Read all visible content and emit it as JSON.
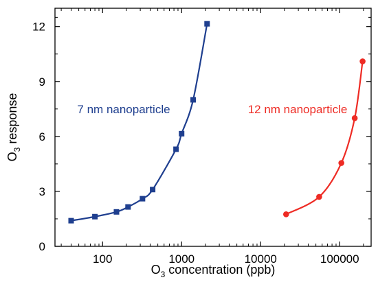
{
  "chart_data": {
    "type": "scatter",
    "title": "",
    "xlabel_parts": {
      "prefix": "O",
      "subscript": "3",
      "suffix": " concentration (ppb)"
    },
    "ylabel_parts": {
      "prefix": "O",
      "subscript": "3",
      "suffix": " response"
    },
    "x_scale": "log",
    "xlim": [
      25,
      250000
    ],
    "ylim": [
      0,
      13
    ],
    "x_tick_values": [
      100,
      1000,
      10000,
      100000
    ],
    "x_tick_labels": [
      "100",
      "1000",
      "10000",
      "100000"
    ],
    "y_tick_values": [
      0,
      3,
      6,
      9,
      12
    ],
    "y_tick_labels": [
      "0",
      "3",
      "6",
      "9",
      "12"
    ],
    "series": [
      {
        "name": "7 nm nanoparticle",
        "color": "#1f3f8f",
        "marker": "square",
        "x": [
          40,
          80,
          150,
          210,
          320,
          430,
          850,
          1000,
          1400,
          2100
        ],
        "y": [
          1.4,
          1.62,
          1.88,
          2.15,
          2.6,
          3.1,
          5.3,
          6.15,
          8.0,
          12.15
        ]
      },
      {
        "name": "12 nm nanoparticle",
        "color": "#ee2b24",
        "marker": "circle",
        "x": [
          21000,
          55000,
          105000,
          155000,
          195000
        ],
        "y": [
          1.75,
          2.7,
          4.55,
          7.0,
          10.1
        ]
      }
    ],
    "grid": false,
    "legend": "inline-labels"
  }
}
